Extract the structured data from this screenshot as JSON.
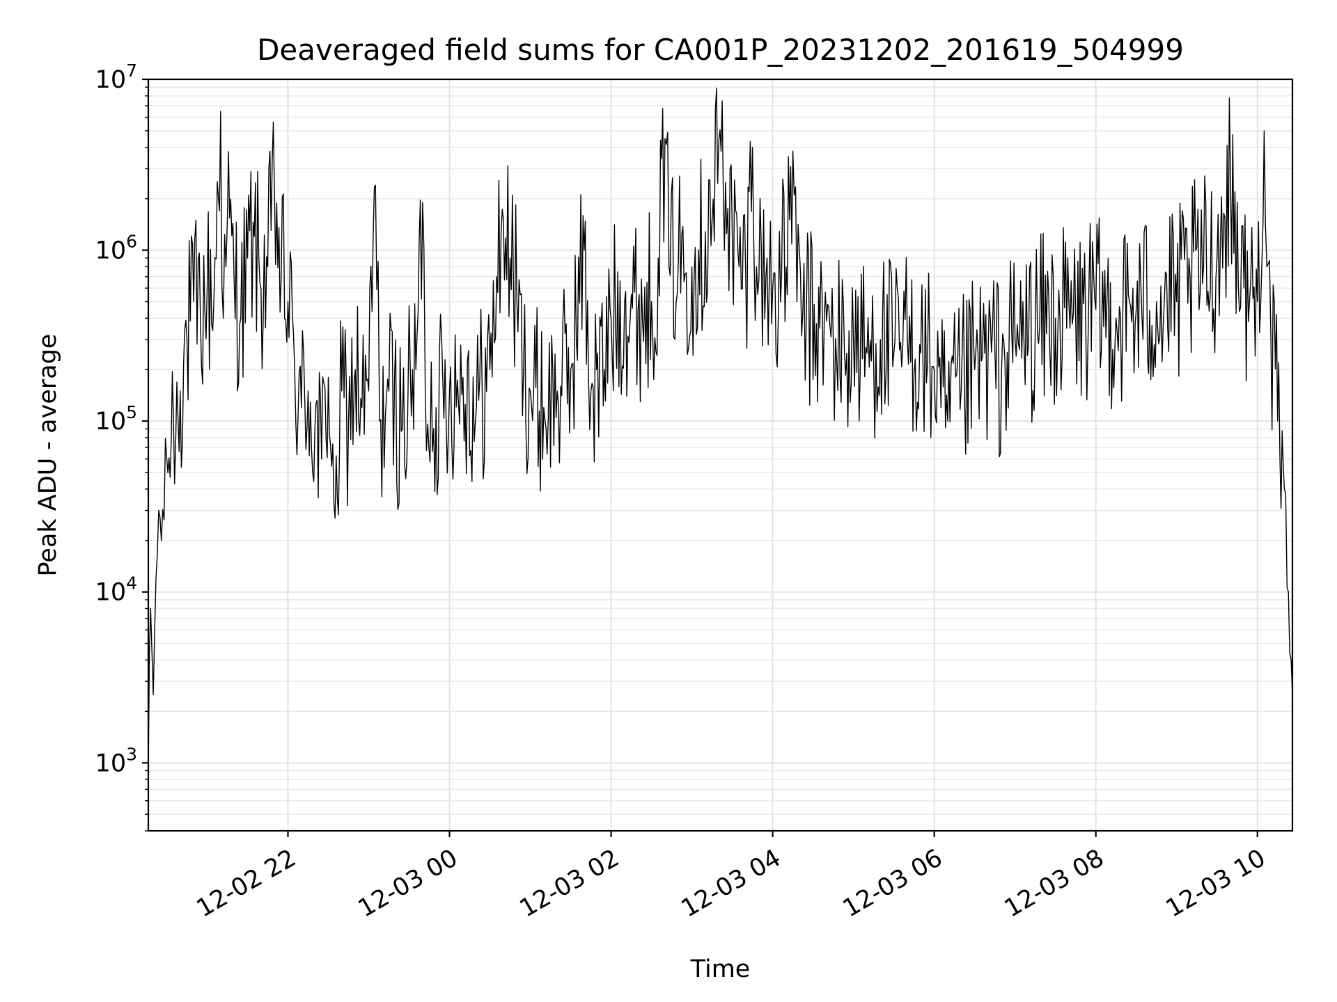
{
  "chart_data": {
    "type": "line",
    "title": "Deaveraged field sums for CA001P_20231202_201619_504999",
    "xlabel": "Time",
    "ylabel": "Peak ADU - average",
    "yscale": "log",
    "xlim": [
      "2023-12-02T20:16:19",
      "2023-12-03T10:26:00"
    ],
    "ylim": [
      400,
      10000000
    ],
    "grid": true,
    "x_ticks": [
      {
        "value": "2023-12-02T22:00:00",
        "label": "12-02 22"
      },
      {
        "value": "2023-12-03T00:00:00",
        "label": "12-03 00"
      },
      {
        "value": "2023-12-03T02:00:00",
        "label": "12-03 02"
      },
      {
        "value": "2023-12-03T04:00:00",
        "label": "12-03 04"
      },
      {
        "value": "2023-12-03T06:00:00",
        "label": "12-03 06"
      },
      {
        "value": "2023-12-03T08:00:00",
        "label": "12-03 08"
      },
      {
        "value": "2023-12-03T10:00:00",
        "label": "12-03 10"
      }
    ],
    "y_ticks": [
      {
        "value": 1000,
        "base": "10",
        "exp": "3"
      },
      {
        "value": 10000,
        "base": "10",
        "exp": "4"
      },
      {
        "value": 100000,
        "base": "10",
        "exp": "5"
      },
      {
        "value": 1000000,
        "base": "10",
        "exp": "6"
      },
      {
        "value": 10000000,
        "base": "10",
        "exp": "7"
      }
    ],
    "series": [
      {
        "color": "#000000",
        "points": [
          [
            "2023-12-02T20:16:19",
            900
          ],
          [
            "2023-12-02T20:18:00",
            8000
          ],
          [
            "2023-12-02T20:20:00",
            2500
          ],
          [
            "2023-12-02T20:22:00",
            12000
          ],
          [
            "2023-12-02T20:24:00",
            30000
          ],
          [
            "2023-12-02T20:26:00",
            20000
          ],
          [
            "2023-12-02T20:30:00",
            60000
          ],
          [
            "2023-12-02T20:35:00",
            100000
          ],
          [
            "2023-12-02T20:40:00",
            150000
          ],
          [
            "2023-12-02T20:45:00",
            300000
          ],
          [
            "2023-12-02T20:50:00",
            500000
          ],
          [
            "2023-12-02T20:55:00",
            400000
          ],
          [
            "2023-12-02T21:00:00",
            600000
          ],
          [
            "2023-12-02T21:05:00",
            500000
          ],
          [
            "2023-12-02T21:10:00",
            6500000
          ],
          [
            "2023-12-02T21:12:00",
            400000
          ],
          [
            "2023-12-02T21:15:00",
            1500000
          ],
          [
            "2023-12-02T21:20:00",
            700000
          ],
          [
            "2023-12-02T21:25:00",
            400000
          ],
          [
            "2023-12-02T21:30:00",
            900000
          ],
          [
            "2023-12-02T21:35:00",
            1200000
          ],
          [
            "2023-12-02T21:40:00",
            600000
          ],
          [
            "2023-12-02T21:45:00",
            800000
          ],
          [
            "2023-12-02T21:50:00",
            2100000
          ],
          [
            "2023-12-02T21:55:00",
            700000
          ],
          [
            "2023-12-02T22:00:00",
            500000
          ],
          [
            "2023-12-02T22:05:00",
            200000
          ],
          [
            "2023-12-02T22:10:00",
            120000
          ],
          [
            "2023-12-02T22:15:00",
            150000
          ],
          [
            "2023-12-02T22:20:00",
            90000
          ],
          [
            "2023-12-02T22:25:00",
            60000
          ],
          [
            "2023-12-02T22:30:00",
            180000
          ],
          [
            "2023-12-02T22:35:00",
            27000
          ],
          [
            "2023-12-02T22:40:00",
            150000
          ],
          [
            "2023-12-02T22:45:00",
            100000
          ],
          [
            "2023-12-02T22:50:00",
            200000
          ],
          [
            "2023-12-02T22:55:00",
            120000
          ],
          [
            "2023-12-02T23:00:00",
            150000
          ],
          [
            "2023-12-02T23:05:00",
            2400000
          ],
          [
            "2023-12-02T23:08:00",
            100000
          ],
          [
            "2023-12-02T23:15:00",
            150000
          ],
          [
            "2023-12-02T23:25:00",
            90000
          ],
          [
            "2023-12-02T23:35:00",
            200000
          ],
          [
            "2023-12-02T23:40:00",
            1900000
          ],
          [
            "2023-12-02T23:42:00",
            150000
          ],
          [
            "2023-12-02T23:50:00",
            120000
          ],
          [
            "2023-12-03T00:00:00",
            150000
          ],
          [
            "2023-12-03T00:10:00",
            180000
          ],
          [
            "2023-12-03T00:20:00",
            120000
          ],
          [
            "2023-12-03T00:30:00",
            200000
          ],
          [
            "2023-12-03T00:35:00",
            700000
          ],
          [
            "2023-12-03T00:40:00",
            1500000
          ],
          [
            "2023-12-03T00:45:00",
            900000
          ],
          [
            "2023-12-03T00:50:00",
            500000
          ],
          [
            "2023-12-03T00:55:00",
            200000
          ],
          [
            "2023-12-03T01:00:00",
            150000
          ],
          [
            "2023-12-03T01:10:00",
            120000
          ],
          [
            "2023-12-03T01:20:00",
            150000
          ],
          [
            "2023-12-03T01:30:00",
            200000
          ],
          [
            "2023-12-03T01:40:00",
            1000000
          ],
          [
            "2023-12-03T01:45:00",
            150000
          ],
          [
            "2023-12-03T01:55:00",
            200000
          ],
          [
            "2023-12-03T02:00:00",
            400000
          ],
          [
            "2023-12-03T02:10:00",
            500000
          ],
          [
            "2023-12-03T02:20:00",
            450000
          ],
          [
            "2023-12-03T02:30:00",
            500000
          ],
          [
            "2023-12-03T02:35:00",
            900000
          ],
          [
            "2023-12-03T02:40:00",
            4500000
          ],
          [
            "2023-12-03T02:43:00",
            800000
          ],
          [
            "2023-12-03T02:50:00",
            900000
          ],
          [
            "2023-12-03T03:00:00",
            800000
          ],
          [
            "2023-12-03T03:05:00",
            1000000
          ],
          [
            "2023-12-03T03:15:00",
            1500000
          ],
          [
            "2023-12-03T03:20:00",
            4400000
          ],
          [
            "2023-12-03T03:25:00",
            2500000
          ],
          [
            "2023-12-03T03:30:00",
            1200000
          ],
          [
            "2023-12-03T03:35:00",
            800000
          ],
          [
            "2023-12-03T03:40:00",
            700000
          ],
          [
            "2023-12-03T03:45:00",
            4000000
          ],
          [
            "2023-12-03T03:48:00",
            800000
          ],
          [
            "2023-12-03T03:55:00",
            700000
          ],
          [
            "2023-12-03T04:00:00",
            600000
          ],
          [
            "2023-12-03T04:10:00",
            800000
          ],
          [
            "2023-12-03T04:15:00",
            3800000
          ],
          [
            "2023-12-03T04:18:00",
            500000
          ],
          [
            "2023-12-03T04:25:00",
            400000
          ],
          [
            "2023-12-03T04:35:00",
            350000
          ],
          [
            "2023-12-03T04:45:00",
            300000
          ],
          [
            "2023-12-03T04:55:00",
            250000
          ],
          [
            "2023-12-03T05:00:00",
            300000
          ],
          [
            "2023-12-03T05:10:00",
            250000
          ],
          [
            "2023-12-03T05:20:00",
            300000
          ],
          [
            "2023-12-03T05:30:00",
            250000
          ],
          [
            "2023-12-03T05:40:00",
            300000
          ],
          [
            "2023-12-03T05:50:00",
            250000
          ],
          [
            "2023-12-03T06:00:00",
            200000
          ],
          [
            "2023-12-03T06:05:00",
            120000
          ],
          [
            "2023-12-03T06:10:00",
            100000
          ],
          [
            "2023-12-03T06:20:00",
            150000
          ],
          [
            "2023-12-03T06:30:00",
            200000
          ],
          [
            "2023-12-03T06:40:00",
            250000
          ],
          [
            "2023-12-03T06:50:00",
            200000
          ],
          [
            "2023-12-03T07:00:00",
            300000
          ],
          [
            "2023-12-03T07:15:00",
            350000
          ],
          [
            "2023-12-03T07:30:00",
            400000
          ],
          [
            "2023-12-03T07:45:00",
            400000
          ],
          [
            "2023-12-03T08:00:00",
            450000
          ],
          [
            "2023-12-03T08:15:00",
            400000
          ],
          [
            "2023-12-03T08:30:00",
            450000
          ],
          [
            "2023-12-03T08:45:00",
            500000
          ],
          [
            "2023-12-03T09:00:00",
            500000
          ],
          [
            "2023-12-03T09:10:00",
            700000
          ],
          [
            "2023-12-03T09:20:00",
            800000
          ],
          [
            "2023-12-03T09:30:00",
            900000
          ],
          [
            "2023-12-03T09:40:00",
            2500000
          ],
          [
            "2023-12-03T09:50:00",
            600000
          ],
          [
            "2023-12-03T10:00:00",
            500000
          ],
          [
            "2023-12-03T10:05:00",
            5000000
          ],
          [
            "2023-12-03T10:07:00",
            800000
          ],
          [
            "2023-12-03T10:10:00",
            300000
          ],
          [
            "2023-12-03T10:15:00",
            100000
          ],
          [
            "2023-12-03T10:20:00",
            40000
          ],
          [
            "2023-12-03T10:23:00",
            10000
          ],
          [
            "2023-12-03T10:25:00",
            4000
          ],
          [
            "2023-12-03T10:26:00",
            2500
          ]
        ]
      }
    ]
  }
}
